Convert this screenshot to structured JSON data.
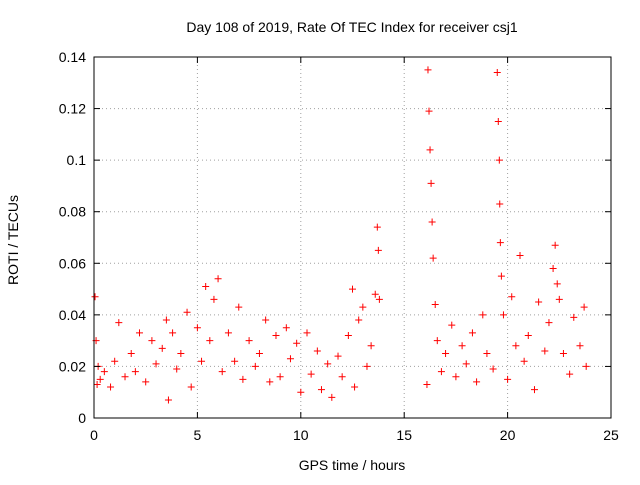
{
  "chart_data": {
    "type": "scatter",
    "title": "Day 108 of 2019, Rate Of TEC Index for receiver csj1",
    "xlabel": "GPS time / hours",
    "ylabel": "ROTI / TECUs",
    "xlim": [
      0,
      25
    ],
    "ylim": [
      0,
      0.14
    ],
    "xticks": [
      0,
      5,
      10,
      15,
      20,
      25
    ],
    "yticks": [
      0,
      0.02,
      0.04,
      0.06,
      0.08,
      0.1,
      0.12,
      0.14
    ],
    "xtick_labels": [
      "0",
      "5",
      "10",
      "15",
      "20",
      "25"
    ],
    "ytick_labels": [
      "0",
      "0.02",
      "0.04",
      "0.06",
      "0.08",
      "0.1",
      "0.12",
      "0.14"
    ],
    "grid": true,
    "marker": "+",
    "color": "#ff0000",
    "series": [
      {
        "name": "ROTI",
        "x": [
          0.05,
          0.1,
          0.15,
          0.2,
          0.3,
          0.5,
          0.8,
          1.0,
          1.2,
          1.5,
          1.8,
          2.0,
          2.2,
          2.5,
          2.8,
          3.0,
          3.3,
          3.5,
          3.6,
          3.8,
          4.0,
          4.2,
          4.5,
          4.7,
          5.0,
          5.2,
          5.4,
          5.6,
          5.8,
          6.0,
          6.2,
          6.5,
          6.8,
          7.0,
          7.2,
          7.5,
          7.8,
          8.0,
          8.3,
          8.5,
          8.8,
          9.0,
          9.3,
          9.5,
          9.8,
          10.0,
          10.3,
          10.5,
          10.8,
          11.0,
          11.3,
          11.5,
          11.8,
          12.0,
          12.3,
          12.5,
          12.6,
          12.8,
          13.0,
          13.2,
          13.4,
          13.6,
          13.7,
          13.75,
          13.8,
          16.1,
          16.15,
          16.2,
          16.25,
          16.3,
          16.35,
          16.4,
          16.5,
          16.6,
          16.8,
          17.0,
          17.3,
          17.5,
          17.8,
          18.0,
          18.3,
          18.5,
          18.8,
          19.0,
          19.3,
          19.5,
          19.55,
          19.6,
          19.62,
          19.65,
          19.7,
          19.8,
          20.0,
          20.2,
          20.4,
          20.6,
          20.8,
          21.0,
          21.3,
          21.5,
          21.8,
          22.0,
          22.2,
          22.3,
          22.4,
          22.5,
          22.7,
          23.0,
          23.2,
          23.5,
          23.7,
          23.8
        ],
        "y": [
          0.047,
          0.03,
          0.013,
          0.02,
          0.015,
          0.018,
          0.012,
          0.022,
          0.037,
          0.016,
          0.025,
          0.018,
          0.033,
          0.014,
          0.03,
          0.021,
          0.027,
          0.038,
          0.007,
          0.033,
          0.019,
          0.025,
          0.041,
          0.012,
          0.035,
          0.022,
          0.051,
          0.03,
          0.046,
          0.054,
          0.018,
          0.033,
          0.022,
          0.043,
          0.015,
          0.03,
          0.02,
          0.025,
          0.038,
          0.014,
          0.032,
          0.016,
          0.035,
          0.023,
          0.029,
          0.01,
          0.033,
          0.017,
          0.026,
          0.011,
          0.021,
          0.008,
          0.024,
          0.016,
          0.032,
          0.05,
          0.012,
          0.038,
          0.043,
          0.02,
          0.028,
          0.048,
          0.074,
          0.065,
          0.046,
          0.013,
          0.135,
          0.119,
          0.104,
          0.091,
          0.076,
          0.062,
          0.044,
          0.03,
          0.018,
          0.025,
          0.036,
          0.016,
          0.028,
          0.021,
          0.033,
          0.014,
          0.04,
          0.025,
          0.019,
          0.134,
          0.115,
          0.1,
          0.083,
          0.068,
          0.055,
          0.04,
          0.015,
          0.047,
          0.028,
          0.063,
          0.022,
          0.032,
          0.011,
          0.045,
          0.026,
          0.037,
          0.058,
          0.067,
          0.052,
          0.046,
          0.025,
          0.017,
          0.039,
          0.028,
          0.043,
          0.02
        ]
      }
    ]
  }
}
